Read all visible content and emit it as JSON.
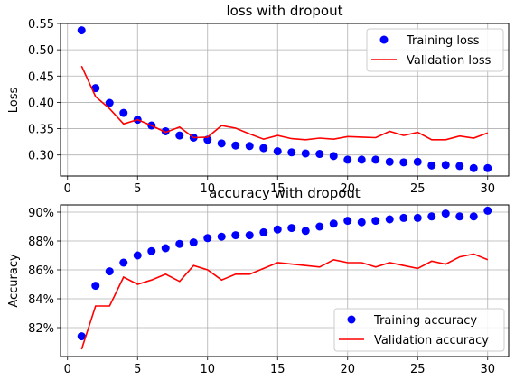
{
  "chart_data": [
    {
      "type": "line",
      "title": "loss with dropout",
      "xlabel": "",
      "ylabel": "Loss",
      "xlim": [
        -0.5,
        31.5
      ],
      "ylim": [
        0.26,
        0.55
      ],
      "xticks": [
        0,
        5,
        10,
        15,
        20,
        25,
        30
      ],
      "yticks": [
        0.3,
        0.35,
        0.4,
        0.45,
        0.5,
        0.55
      ],
      "ytick_labels": [
        "0.30",
        "0.35",
        "0.40",
        "0.45",
        "0.50",
        "0.55"
      ],
      "grid": true,
      "legend_position": "top-right",
      "x": [
        1,
        2,
        3,
        4,
        5,
        6,
        7,
        8,
        9,
        10,
        11,
        12,
        13,
        14,
        15,
        16,
        17,
        18,
        19,
        20,
        21,
        22,
        23,
        24,
        25,
        26,
        27,
        28,
        29,
        30
      ],
      "series": [
        {
          "name": "Training loss",
          "style": "points",
          "color": "#0000ff",
          "values": [
            0.537,
            0.427,
            0.399,
            0.38,
            0.367,
            0.356,
            0.345,
            0.337,
            0.333,
            0.329,
            0.322,
            0.318,
            0.317,
            0.313,
            0.307,
            0.305,
            0.303,
            0.302,
            0.298,
            0.291,
            0.291,
            0.291,
            0.287,
            0.286,
            0.287,
            0.28,
            0.281,
            0.279,
            0.275,
            0.275
          ]
        },
        {
          "name": "Validation loss",
          "style": "line",
          "color": "#ff0000",
          "values": [
            0.469,
            0.411,
            0.388,
            0.359,
            0.367,
            0.356,
            0.343,
            0.353,
            0.333,
            0.334,
            0.356,
            0.351,
            0.34,
            0.33,
            0.337,
            0.331,
            0.329,
            0.332,
            0.33,
            0.335,
            0.334,
            0.333,
            0.345,
            0.337,
            0.343,
            0.329,
            0.329,
            0.336,
            0.332,
            0.342
          ]
        }
      ]
    },
    {
      "type": "line",
      "title": "accuracy with dropout",
      "xlabel": "",
      "ylabel": "Accuracy",
      "xlim": [
        -0.5,
        31.5
      ],
      "ylim": [
        0.8,
        0.905
      ],
      "xticks": [
        0,
        5,
        10,
        15,
        20,
        25,
        30
      ],
      "yticks": [
        0.82,
        0.84,
        0.86,
        0.88,
        0.9
      ],
      "ytick_labels": [
        "82%",
        "84%",
        "86%",
        "88%",
        "90%"
      ],
      "grid": true,
      "legend_position": "bottom-right",
      "x": [
        1,
        2,
        3,
        4,
        5,
        6,
        7,
        8,
        9,
        10,
        11,
        12,
        13,
        14,
        15,
        16,
        17,
        18,
        19,
        20,
        21,
        22,
        23,
        24,
        25,
        26,
        27,
        28,
        29,
        30
      ],
      "series": [
        {
          "name": "Training accuracy",
          "style": "points",
          "color": "#0000ff",
          "values": [
            0.814,
            0.849,
            0.859,
            0.865,
            0.87,
            0.873,
            0.875,
            0.878,
            0.879,
            0.882,
            0.883,
            0.884,
            0.884,
            0.886,
            0.888,
            0.889,
            0.887,
            0.89,
            0.892,
            0.894,
            0.893,
            0.894,
            0.895,
            0.896,
            0.896,
            0.897,
            0.899,
            0.897,
            0.897,
            0.901
          ]
        },
        {
          "name": "Validation accuracy",
          "style": "line",
          "color": "#ff0000",
          "values": [
            0.805,
            0.835,
            0.835,
            0.855,
            0.85,
            0.853,
            0.857,
            0.852,
            0.863,
            0.86,
            0.853,
            0.857,
            0.857,
            0.861,
            0.865,
            0.864,
            0.863,
            0.862,
            0.867,
            0.865,
            0.865,
            0.862,
            0.865,
            0.863,
            0.861,
            0.866,
            0.864,
            0.869,
            0.871,
            0.867
          ]
        }
      ]
    }
  ]
}
